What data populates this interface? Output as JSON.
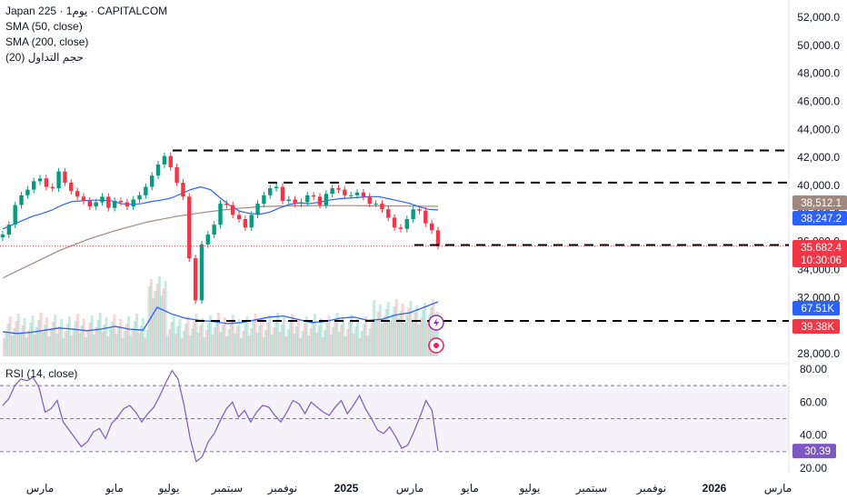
{
  "header": {
    "symbol_line": "Japan 225 · 1يوم · CAPITALCOM",
    "sma50_label": "SMA (50, close)",
    "sma200_label": "SMA (200, close)",
    "volume_label": "حجم التداول (20)"
  },
  "rsi_header": {
    "label": "RSI (14, close)"
  },
  "price_tags": [
    {
      "text": "38,512.1",
      "value": 38512.1,
      "color": "#a1887f"
    },
    {
      "text": "38,247.2",
      "value": 38247.2,
      "color": "#2962ff"
    },
    {
      "text": "35,682.4",
      "value": 35682.4,
      "color": "#f23645",
      "sub": "10:30:06"
    }
  ],
  "volume_tags": [
    {
      "text": "67.51K",
      "color": "#2962ff"
    },
    {
      "text": "39.38K",
      "color": "#f23645"
    }
  ],
  "rsi_tag": {
    "text": "30.39",
    "value": 30.39,
    "color": "#7e57c2"
  },
  "chart_data": {
    "type": "candlestick",
    "symbol": "Japan 225",
    "interval": "1 day",
    "source": "CAPITALCOM",
    "price_axis": {
      "ticks": [
        "52,000.0",
        "50,000.0",
        "48,000.0",
        "46,000.0",
        "44,000.0",
        "42,000.0",
        "40,000.0",
        "38,000.0",
        "36,000.0",
        "34,000.0",
        "32,000.0",
        "30,000.0",
        "28,000.0"
      ],
      "ylim": [
        27600,
        52700
      ]
    },
    "time_axis": [
      "مارس",
      "مايو",
      "يوليو",
      "سبتمبر",
      "نوفمبر",
      "2025",
      "مارس",
      "مايو",
      "يوليو",
      "سبتمبر",
      "نوفمبر",
      "2026",
      "مارس"
    ],
    "close_series": [
      36500,
      37200,
      38600,
      39300,
      39700,
      40300,
      40500,
      39900,
      39800,
      41000,
      40200,
      39600,
      39200,
      38900,
      38500,
      38800,
      39200,
      38400,
      38900,
      38800,
      38500,
      39000,
      39300,
      39900,
      40700,
      41500,
      42100,
      41300,
      40200,
      39200,
      34800,
      31800,
      35800,
      36500,
      37200,
      38700,
      38600,
      37900,
      37600,
      37000,
      37900,
      38700,
      39300,
      39800,
      39900,
      38900,
      39000,
      38700,
      38800,
      39300,
      39200,
      38600,
      39400,
      39800,
      39700,
      39300,
      39300,
      39500,
      39200,
      38700,
      38700,
      38300,
      37700,
      37000,
      36900,
      37600,
      38300,
      38200,
      37300,
      36800,
      35682
    ],
    "sma50": [
      36900,
      37200,
      37500,
      37800,
      38000,
      38250,
      38600,
      38850,
      38900,
      38950,
      38950,
      38900,
      38700,
      38650,
      38700,
      38850,
      38950,
      39100,
      39400,
      39700,
      39900,
      39700,
      39100,
      38550,
      38150,
      38000,
      37950,
      38100,
      38400,
      38650,
      38750,
      38700,
      38800,
      38950,
      39050,
      39100,
      39150,
      39200,
      39200,
      39050,
      38900,
      38750,
      38500,
      38300,
      38247
    ],
    "sma200": [
      33400,
      34400,
      35400,
      36200,
      36850,
      37400,
      37800,
      38100,
      38350,
      38500,
      38550,
      38560,
      38560,
      38550,
      38530,
      38512
    ],
    "dashed_levels": [
      {
        "price": 42500,
        "from_date_label": "يوليو"
      },
      {
        "price": 40200,
        "from_date_label": "نوفمبر"
      },
      {
        "price": 35750,
        "from_date_label": "مارس"
      }
    ],
    "volume": {
      "label": "حجم التداول (20)",
      "last": "39.38K",
      "ma": "67.51K",
      "ma_series": [
        0.45,
        0.42,
        0.44,
        0.48,
        0.52,
        0.5,
        0.47,
        0.5,
        0.55,
        0.5,
        0.48,
        0.9,
        0.78,
        0.7,
        0.66,
        0.64,
        0.6,
        0.62,
        0.67,
        0.72,
        0.74,
        0.68,
        0.62,
        0.64,
        0.7,
        0.72,
        0.66,
        0.68,
        0.76,
        0.8,
        0.9,
        1.0
      ]
    },
    "rsi": {
      "label": "RSI (14, close)",
      "last": 30.39,
      "ticks": [
        80,
        60,
        40,
        20
      ],
      "bands": [
        70,
        50,
        30
      ],
      "series": [
        58,
        62,
        70,
        74,
        73,
        75,
        69,
        54,
        56,
        61,
        48,
        43,
        38,
        33,
        36,
        42,
        44,
        38,
        47,
        51,
        56,
        58,
        54,
        48,
        53,
        57,
        64,
        72,
        79,
        74,
        58,
        38,
        24,
        27,
        36,
        41,
        49,
        56,
        60,
        51,
        55,
        48,
        54,
        58,
        57,
        52,
        48,
        54,
        61,
        59,
        53,
        60,
        57,
        54,
        52,
        57,
        61,
        53,
        58,
        64,
        56,
        50,
        43,
        41,
        45,
        39,
        32,
        34,
        42,
        51,
        61,
        55,
        30.39
      ]
    }
  }
}
